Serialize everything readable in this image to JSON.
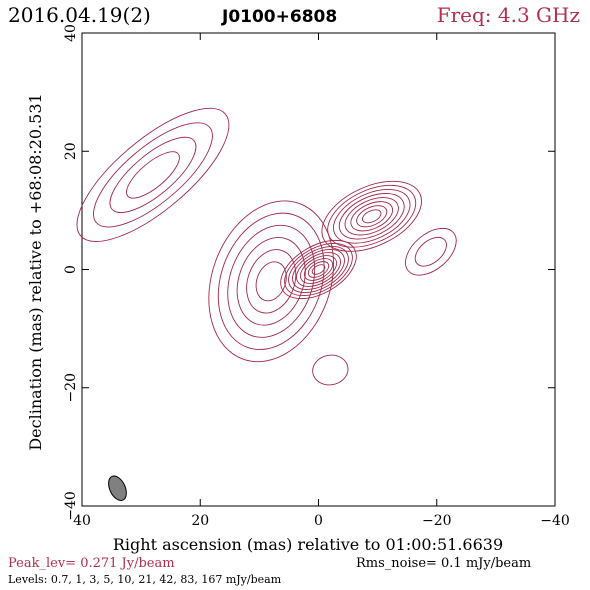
{
  "colors": {
    "contour": "#a0284a",
    "accent": "#b0304f",
    "axis": "#000000",
    "beam_fill": "#808080"
  },
  "header": {
    "date": "2016.04.19(2)",
    "source": "J0100+6808",
    "freq": "Freq: 4.3 GHz"
  },
  "footer": {
    "peak": "Peak_lev=  0.271 Jy/beam",
    "rms": "Rms_noise=  0.1 mJy/beam",
    "levels": "Levels: 0.7,   1,   3,   5,  10,  21,  42,  83, 167 mJy/beam"
  },
  "chart_data": {
    "type": "contour",
    "xlabel": "Right ascension (mas) relative to 01:00:51.6639",
    "ylabel": "Declination (mas) relative to +68:08:20.531",
    "xlim": [
      40,
      -40
    ],
    "ylim": [
      -40,
      40
    ],
    "x_ticks": [
      40,
      20,
      0,
      -20,
      -40
    ],
    "y_ticks": [
      -40,
      -20,
      0,
      20,
      40
    ],
    "x_tick_labels": [
      "40",
      "20",
      "0",
      "−20",
      "−40"
    ],
    "y_tick_labels": [
      "−40",
      "−20",
      "0",
      "20",
      "40"
    ],
    "levels_mJy_per_beam": [
      0.7,
      1,
      3,
      5,
      10,
      21,
      42,
      83,
      167
    ],
    "peak_Jy_per_beam": 0.271,
    "rms_mJy_per_beam": 0.1,
    "beam": {
      "x": 34,
      "y": -37,
      "major": 4.4,
      "minor": 2.6,
      "pa_deg": 25
    },
    "components": [
      {
        "x": 0,
        "y": 0,
        "major": 7,
        "minor": 4,
        "pa_deg": 30,
        "levels": 9
      },
      {
        "x": -9,
        "y": 9,
        "major": 9,
        "minor": 5,
        "pa_deg": 25,
        "levels": 8
      },
      {
        "x": 8,
        "y": -2,
        "major": 14,
        "minor": 10,
        "pa_deg": 70,
        "levels": 6
      },
      {
        "x": 28,
        "y": 16,
        "major": 16,
        "minor": 6,
        "pa_deg": 40,
        "levels": 4
      },
      {
        "x": -19,
        "y": 3,
        "major": 5,
        "minor": 3,
        "pa_deg": 40,
        "levels": 2
      },
      {
        "x": -2,
        "y": -17,
        "major": 3,
        "minor": 2.5,
        "pa_deg": 10,
        "levels": 1
      }
    ]
  }
}
